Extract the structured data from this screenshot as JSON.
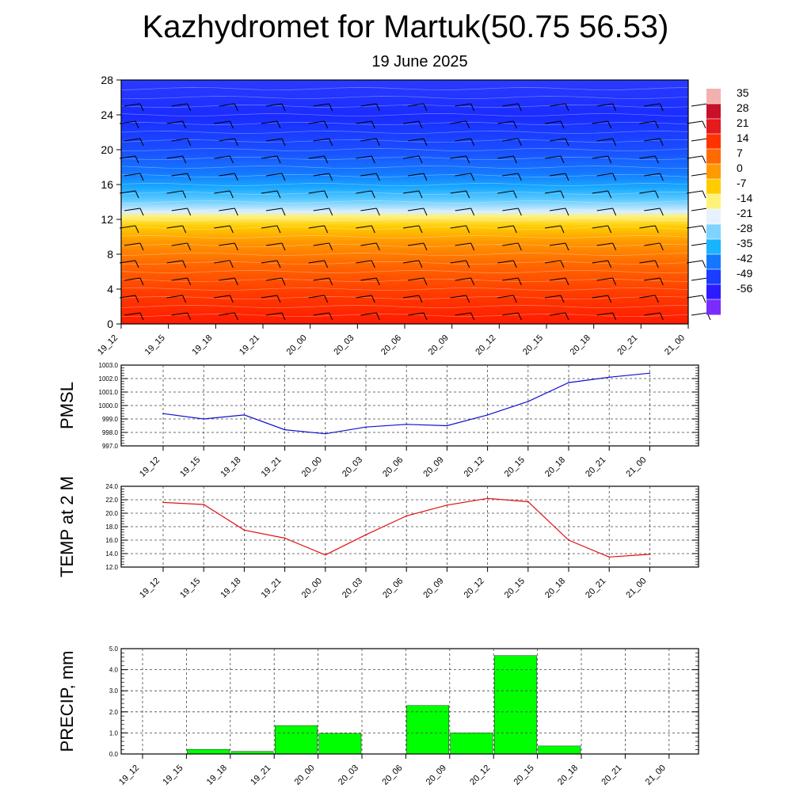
{
  "title": "Kazhydromet for Martuk(50.75 56.53)",
  "subtitle": "19 June 2025",
  "colors": {
    "pressure_line": "#1010d0",
    "temperature_line": "#e01010",
    "precip_bar": "#00ff00",
    "grid": "#444444"
  },
  "chart_data": [
    {
      "type": "heatmap",
      "name": "cross-section",
      "categories": [
        "19_12",
        "19_15",
        "19_18",
        "19_21",
        "20_00",
        "20_03",
        "20_06",
        "20_09",
        "20_12",
        "20_15",
        "20_18",
        "20_21",
        "21_00"
      ],
      "y_ticks": [
        "0",
        "4",
        "8",
        "12",
        "16",
        "20",
        "24",
        "28"
      ],
      "ylim": [
        0,
        28
      ],
      "colorbar_labels": [
        "35",
        "28",
        "21",
        "14",
        "7",
        "0",
        "-7",
        "-14",
        "-21",
        "-28",
        "-35",
        "-42",
        "-49",
        "-56"
      ],
      "colorbar_stops": [
        "#f2b0b0",
        "#c8102a",
        "#e41a1c",
        "#ff3300",
        "#ff6a00",
        "#ff9a00",
        "#ffcc00",
        "#fff27a",
        "#e6f2ff",
        "#7fd4ff",
        "#18b4ff",
        "#1478ff",
        "#1a3dff",
        "#2a1cff",
        "#7a2cff"
      ],
      "freezing_level": 12.5,
      "wind_barbs": "shown"
    },
    {
      "type": "line",
      "name": "pressure",
      "ylabel": "PMSL",
      "categories": [
        "19_12",
        "19_15",
        "19_18",
        "19_21",
        "20_00",
        "20_03",
        "20_06",
        "20_09",
        "20_12",
        "20_15",
        "20_18",
        "20_21",
        "21_00"
      ],
      "y_ticks": [
        "997.0",
        "998.0",
        "999.0",
        "1000.0",
        "1001.0",
        "1002.0",
        "1003.0"
      ],
      "ylim": [
        997.0,
        1003.0
      ],
      "values": [
        999.4,
        999.0,
        999.3,
        998.2,
        997.9,
        998.4,
        998.6,
        998.5,
        999.3,
        1000.3,
        1001.7,
        1002.1,
        1002.4
      ],
      "grid": true
    },
    {
      "type": "line",
      "name": "temperature",
      "ylabel": "TEMP at 2 M",
      "categories": [
        "19_12",
        "19_15",
        "19_18",
        "19_21",
        "20_00",
        "20_03",
        "20_06",
        "20_09",
        "20_12",
        "20_15",
        "20_18",
        "20_21",
        "21_00"
      ],
      "y_ticks": [
        "12.0",
        "14.0",
        "16.0",
        "18.0",
        "20.0",
        "22.0",
        "24.0"
      ],
      "ylim": [
        12.0,
        24.0
      ],
      "values": [
        21.6,
        21.3,
        17.5,
        16.3,
        13.8,
        16.8,
        19.6,
        21.2,
        22.2,
        21.7,
        16.0,
        13.5,
        13.9
      ],
      "grid": true
    },
    {
      "type": "bar",
      "name": "precipitation",
      "ylabel": "PRECIP, mm",
      "categories": [
        "19_12",
        "19_15",
        "19_18",
        "19_21",
        "20_00",
        "20_03",
        "20_06",
        "20_09",
        "20_12",
        "20_15",
        "20_18",
        "20_21",
        "21_00"
      ],
      "y_ticks": [
        "0.0",
        "1.0",
        "2.0",
        "3.0",
        "4.0",
        "5.0"
      ],
      "ylim": [
        0,
        5.0
      ],
      "values": [
        0.0,
        0.22,
        0.12,
        1.35,
        0.98,
        0.0,
        2.3,
        1.0,
        4.67,
        0.38,
        0.0,
        0.0,
        0.0
      ],
      "grid": true
    }
  ]
}
